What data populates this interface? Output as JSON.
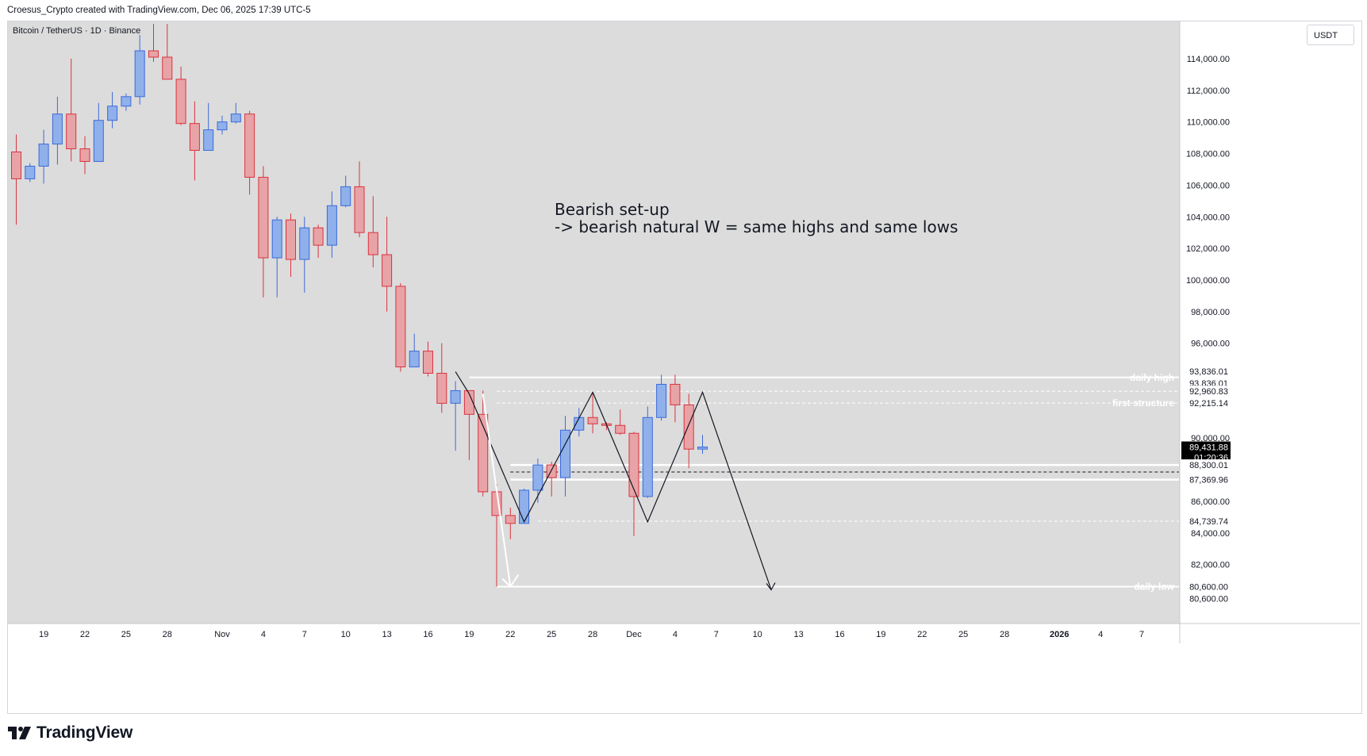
{
  "header": {
    "text": "Croesus_Crypto created with TradingView.com, Dec 06, 2025 17:39 UTC-5"
  },
  "symbol": {
    "text": "Bitcoin / TetherUS · 1D · Binance"
  },
  "currency": {
    "label": "USDT"
  },
  "brand": {
    "name": "TradingView"
  },
  "colors": {
    "background": "#dcdcdc",
    "up": "#8fb0ea",
    "up_border": "#3b6ad9",
    "down": "#e8a3a6",
    "down_border": "#d9333f",
    "price_tag": "#000000"
  },
  "chart_data": {
    "type": "candlestick",
    "title": "Bitcoin / TetherUS · 1D · Binance",
    "ylim": [
      79500,
      116500
    ],
    "y_ticks": [
      114000,
      112000,
      110000,
      108000,
      106000,
      104000,
      102000,
      100000,
      98000,
      96000,
      90000,
      86000,
      84000,
      82000
    ],
    "y_tick_labels": [
      "114,000.00",
      "112,000.00",
      "110,000.00",
      "108,000.00",
      "106,000.00",
      "104,000.00",
      "102,000.00",
      "100,000.00",
      "98,000.00",
      "96,000.00",
      "90,000.00",
      "86,000.00",
      "84,000.00",
      "82,000.00"
    ],
    "x_ticks": [
      {
        "label": "19",
        "idx": 2
      },
      {
        "label": "22",
        "idx": 5
      },
      {
        "label": "25",
        "idx": 8
      },
      {
        "label": "28",
        "idx": 11
      },
      {
        "label": "Nov",
        "idx": 15
      },
      {
        "label": "4",
        "idx": 18
      },
      {
        "label": "7",
        "idx": 21
      },
      {
        "label": "10",
        "idx": 24
      },
      {
        "label": "13",
        "idx": 27
      },
      {
        "label": "16",
        "idx": 30
      },
      {
        "label": "19",
        "idx": 33
      },
      {
        "label": "22",
        "idx": 36
      },
      {
        "label": "25",
        "idx": 39
      },
      {
        "label": "28",
        "idx": 42
      },
      {
        "label": "Dec",
        "idx": 45
      },
      {
        "label": "4",
        "idx": 48
      },
      {
        "label": "7",
        "idx": 51
      },
      {
        "label": "10",
        "idx": 54
      },
      {
        "label": "13",
        "idx": 57
      },
      {
        "label": "16",
        "idx": 60
      },
      {
        "label": "19",
        "idx": 63
      },
      {
        "label": "22",
        "idx": 66
      },
      {
        "label": "25",
        "idx": 69
      },
      {
        "label": "28",
        "idx": 72
      },
      {
        "label": "2026",
        "idx": 76
      },
      {
        "label": "4",
        "idx": 79
      },
      {
        "label": "7",
        "idx": 82
      }
    ],
    "candles": [
      {
        "d": "Oct 17",
        "o": 108100,
        "h": 109200,
        "l": 103500,
        "c": 106400
      },
      {
        "d": "Oct 18",
        "o": 106400,
        "h": 107400,
        "l": 106200,
        "c": 107200
      },
      {
        "d": "Oct 19",
        "o": 107200,
        "h": 109500,
        "l": 106100,
        "c": 108600
      },
      {
        "d": "Oct 20",
        "o": 108600,
        "h": 111600,
        "l": 107300,
        "c": 110500
      },
      {
        "d": "Oct 21",
        "o": 110500,
        "h": 114000,
        "l": 107500,
        "c": 108300
      },
      {
        "d": "Oct 22",
        "o": 108300,
        "h": 109100,
        "l": 106700,
        "c": 107500
      },
      {
        "d": "Oct 23",
        "o": 107500,
        "h": 111200,
        "l": 107500,
        "c": 110100
      },
      {
        "d": "Oct 24",
        "o": 110100,
        "h": 111900,
        "l": 109600,
        "c": 111000
      },
      {
        "d": "Oct 25",
        "o": 111000,
        "h": 111800,
        "l": 110700,
        "c": 111600
      },
      {
        "d": "Oct 26",
        "o": 111600,
        "h": 115500,
        "l": 111100,
        "c": 114500
      },
      {
        "d": "Oct 27",
        "o": 114500,
        "h": 116200,
        "l": 113800,
        "c": 114100
      },
      {
        "d": "Oct 28",
        "o": 114100,
        "h": 116200,
        "l": 112700,
        "c": 112700
      },
      {
        "d": "Oct 29",
        "o": 112700,
        "h": 113500,
        "l": 109800,
        "c": 109900
      },
      {
        "d": "Oct 30",
        "o": 109900,
        "h": 111300,
        "l": 106300,
        "c": 108200
      },
      {
        "d": "Oct 31",
        "o": 108200,
        "h": 111200,
        "l": 108200,
        "c": 109500
      },
      {
        "d": "Nov 1",
        "o": 109500,
        "h": 110400,
        "l": 109200,
        "c": 110000
      },
      {
        "d": "Nov 2",
        "o": 110000,
        "h": 111200,
        "l": 109900,
        "c": 110500
      },
      {
        "d": "Nov 3",
        "o": 110500,
        "h": 110700,
        "l": 105400,
        "c": 106500
      },
      {
        "d": "Nov 4",
        "o": 106500,
        "h": 107200,
        "l": 98900,
        "c": 101400
      },
      {
        "d": "Nov 5",
        "o": 101400,
        "h": 104000,
        "l": 98900,
        "c": 103800
      },
      {
        "d": "Nov 6",
        "o": 103800,
        "h": 104200,
        "l": 100200,
        "c": 101300
      },
      {
        "d": "Nov 7",
        "o": 101300,
        "h": 104000,
        "l": 99200,
        "c": 103300
      },
      {
        "d": "Nov 8",
        "o": 103300,
        "h": 103500,
        "l": 101400,
        "c": 102200
      },
      {
        "d": "Nov 9",
        "o": 102200,
        "h": 105600,
        "l": 101400,
        "c": 104700
      },
      {
        "d": "Nov 10",
        "o": 104700,
        "h": 106600,
        "l": 104600,
        "c": 105900
      },
      {
        "d": "Nov 11",
        "o": 105900,
        "h": 107500,
        "l": 102700,
        "c": 103000
      },
      {
        "d": "Nov 12",
        "o": 103000,
        "h": 105300,
        "l": 100800,
        "c": 101600
      },
      {
        "d": "Nov 13",
        "o": 101600,
        "h": 104000,
        "l": 98000,
        "c": 99600
      },
      {
        "d": "Nov 14",
        "o": 99600,
        "h": 99800,
        "l": 94200,
        "c": 94500
      },
      {
        "d": "Nov 15",
        "o": 94500,
        "h": 96600,
        "l": 94500,
        "c": 95500
      },
      {
        "d": "Nov 16",
        "o": 95500,
        "h": 96100,
        "l": 93900,
        "c": 94100
      },
      {
        "d": "Nov 17",
        "o": 94100,
        "h": 96000,
        "l": 91600,
        "c": 92200
      },
      {
        "d": "Nov 18",
        "o": 92200,
        "h": 93600,
        "l": 89200,
        "c": 93000
      },
      {
        "d": "Nov 19",
        "o": 93000,
        "h": 93000,
        "l": 88600,
        "c": 91500
      },
      {
        "d": "Nov 20",
        "o": 91500,
        "h": 93000,
        "l": 86300,
        "c": 86600
      },
      {
        "d": "Nov 21",
        "o": 86600,
        "h": 87100,
        "l": 80600,
        "c": 85100
      },
      {
        "d": "Nov 22",
        "o": 85100,
        "h": 85600,
        "l": 83600,
        "c": 84600
      },
      {
        "d": "Nov 23",
        "o": 84600,
        "h": 86800,
        "l": 84600,
        "c": 86700
      },
      {
        "d": "Nov 24",
        "o": 86700,
        "h": 88700,
        "l": 85900,
        "c": 88300
      },
      {
        "d": "Nov 25",
        "o": 88300,
        "h": 88500,
        "l": 86300,
        "c": 87500
      },
      {
        "d": "Nov 26",
        "o": 87500,
        "h": 91400,
        "l": 86300,
        "c": 90500
      },
      {
        "d": "Nov 27",
        "o": 90500,
        "h": 91900,
        "l": 90100,
        "c": 91300
      },
      {
        "d": "Nov 28",
        "o": 91300,
        "h": 92900,
        "l": 90300,
        "c": 90900
      },
      {
        "d": "Nov 29",
        "o": 90900,
        "h": 91000,
        "l": 90500,
        "c": 90800
      },
      {
        "d": "Nov 30",
        "o": 90800,
        "h": 91800,
        "l": 90200,
        "c": 90300
      },
      {
        "d": "Dec 1",
        "o": 90300,
        "h": 90400,
        "l": 83800,
        "c": 86300
      },
      {
        "d": "Dec 2",
        "o": 86300,
        "h": 92000,
        "l": 86200,
        "c": 91300
      },
      {
        "d": "Dec 3",
        "o": 91300,
        "h": 94000,
        "l": 91100,
        "c": 93400
      },
      {
        "d": "Dec 4",
        "o": 93400,
        "h": 94000,
        "l": 91000,
        "c": 92100
      },
      {
        "d": "Dec 5",
        "o": 92100,
        "h": 92800,
        "l": 88100,
        "c": 89300
      },
      {
        "d": "Dec 6",
        "o": 89300,
        "h": 90200,
        "l": 89000,
        "c": 89432
      }
    ],
    "levels": [
      {
        "label": "daily high",
        "value": 93836.01,
        "style": "solid-white",
        "start_idx": 33
      },
      {
        "label": "",
        "value": 92960.83,
        "style": "dashed-white",
        "start_idx": 35
      },
      {
        "label": "first structure",
        "value": 92215.14,
        "style": "dashed-white",
        "start_idx": 35
      },
      {
        "label": "",
        "value": 84739.74,
        "style": "dashed-white",
        "start_idx": 38
      },
      {
        "label": "daily low",
        "value": 80600,
        "style": "solid-white",
        "start_idx": 35
      }
    ],
    "zone": {
      "top": 88300.01,
      "bottom": 87369.96,
      "start_idx": 36
    },
    "dashed_black_level": 87850,
    "price_tags": [
      {
        "text": "93,836.01",
        "value": 93836.01,
        "style": "white",
        "offset": -8
      },
      {
        "text": "93,836.01",
        "value": 93836.01,
        "style": "white",
        "offset": 7
      },
      {
        "text": "92,960.83",
        "value": 92960.83,
        "style": "white",
        "offset": 0
      },
      {
        "text": "92,215.14",
        "value": 92215.14,
        "style": "white",
        "offset": 0
      },
      {
        "text": "89,431.88",
        "value": 89431.88,
        "style": "black",
        "offset": 0
      },
      {
        "text": "01:20:36",
        "value": 89431.88,
        "style": "black",
        "offset": 13
      },
      {
        "text": "88,300.01",
        "value": 88300.01,
        "style": "white",
        "offset": 0
      },
      {
        "text": "87,369.96",
        "value": 87369.96,
        "style": "white",
        "offset": 0
      },
      {
        "text": "84,739.74",
        "value": 84739.74,
        "style": "white",
        "offset": 0
      },
      {
        "text": "80,600.00",
        "value": 80600,
        "style": "white",
        "offset": 0
      },
      {
        "text": "80,600.00",
        "value": 80600,
        "style": "white",
        "offset": 15
      }
    ],
    "annotation": {
      "lines": [
        "Bearish set-up",
        "-> bearish natural W = same highs and same lows"
      ]
    },
    "w_path": [
      {
        "idx": 32,
        "v": 94200
      },
      {
        "idx": 33,
        "v": 92800
      },
      {
        "idx": 37,
        "v": 84700
      },
      {
        "idx": 42,
        "v": 92900
      },
      {
        "idx": 46,
        "v": 84700
      },
      {
        "idx": 50,
        "v": 92900
      },
      {
        "idx": 55,
        "v": 80400
      }
    ],
    "white_arrow": [
      {
        "idx": 34,
        "v": 92800
      },
      {
        "idx": 36,
        "v": 80600
      }
    ]
  }
}
